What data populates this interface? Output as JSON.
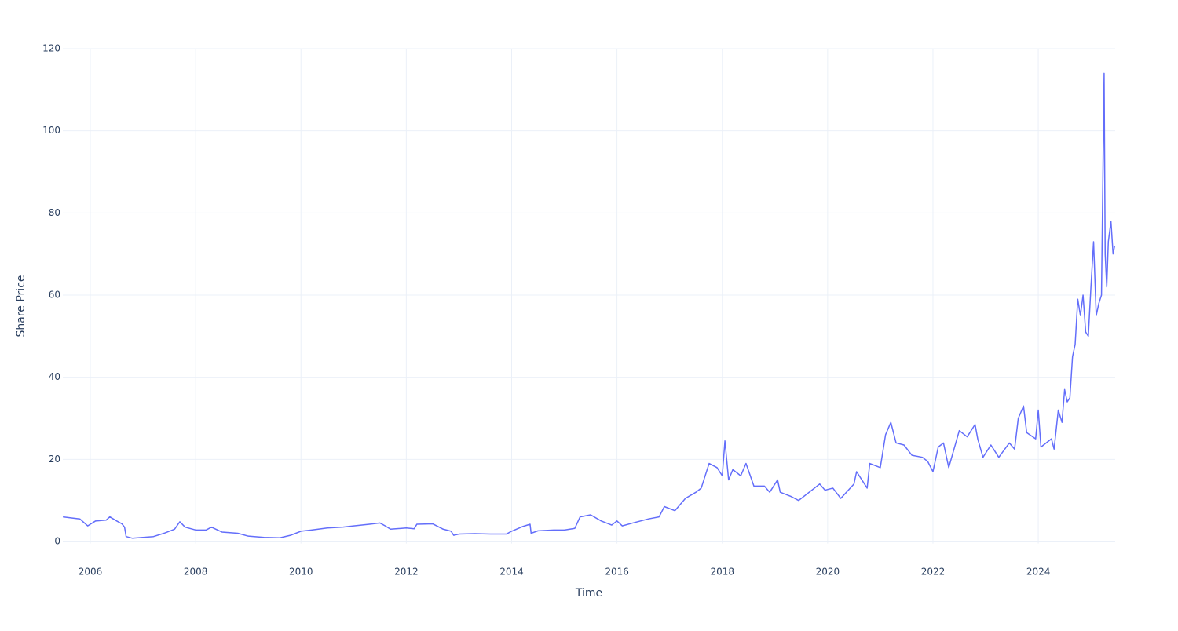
{
  "chart_data": {
    "type": "line",
    "xlabel": "Time",
    "ylabel": "Share Price",
    "x": [
      2005.48,
      2005.6,
      2005.8,
      2005.95,
      2006.0,
      2006.1,
      2006.3,
      2006.37,
      2006.5,
      2006.6,
      2006.65,
      2006.68,
      2006.8,
      2007.0,
      2007.2,
      2007.4,
      2007.6,
      2007.7,
      2007.8,
      2008.0,
      2008.2,
      2008.3,
      2008.5,
      2008.8,
      2009.0,
      2009.3,
      2009.6,
      2009.8,
      2010.0,
      2010.2,
      2010.5,
      2010.8,
      2011.0,
      2011.3,
      2011.5,
      2011.6,
      2011.7,
      2012.0,
      2012.15,
      2012.2,
      2012.5,
      2012.7,
      2012.85,
      2012.9,
      2013.0,
      2013.3,
      2013.6,
      2013.9,
      2014.0,
      2014.2,
      2014.35,
      2014.37,
      2014.5,
      2014.8,
      2015.0,
      2015.2,
      2015.3,
      2015.5,
      2015.7,
      2015.9,
      2016.0,
      2016.1,
      2016.3,
      2016.6,
      2016.8,
      2016.9,
      2017.1,
      2017.3,
      2017.5,
      2017.6,
      2017.75,
      2017.9,
      2018.0,
      2018.05,
      2018.12,
      2018.2,
      2018.35,
      2018.45,
      2018.6,
      2018.8,
      2018.9,
      2019.05,
      2019.1,
      2019.3,
      2019.45,
      2019.7,
      2019.85,
      2019.95,
      2020.1,
      2020.25,
      2020.5,
      2020.55,
      2020.75,
      2020.8,
      2021.0,
      2021.1,
      2021.2,
      2021.3,
      2021.45,
      2021.6,
      2021.8,
      2021.9,
      2022.0,
      2022.1,
      2022.2,
      2022.3,
      2022.5,
      2022.65,
      2022.8,
      2022.85,
      2022.95,
      2023.1,
      2023.25,
      2023.45,
      2023.55,
      2023.62,
      2023.72,
      2023.78,
      2023.95,
      2024.0,
      2024.05,
      2024.15,
      2024.25,
      2024.3,
      2024.38,
      2024.45,
      2024.5,
      2024.55,
      2024.6,
      2024.65,
      2024.7,
      2024.75,
      2024.8,
      2024.85,
      2024.9,
      2024.95,
      2025.0,
      2025.05,
      2025.1,
      2025.15,
      2025.2,
      2025.25,
      2025.27,
      2025.3,
      2025.33,
      2025.38,
      2025.42,
      2025.45
    ],
    "series": [
      {
        "name": "Share Price",
        "color": "#636efa",
        "values": [
          6,
          5.8,
          5.5,
          3.8,
          4.2,
          5,
          5.2,
          6,
          5,
          4.3,
          3.5,
          1.2,
          0.8,
          1.0,
          1.2,
          2.0,
          3,
          4.8,
          3.5,
          2.8,
          2.8,
          3.5,
          2.3,
          2,
          1.3,
          1,
          0.9,
          1.5,
          2.5,
          2.8,
          3.3,
          3.5,
          3.8,
          4.2,
          4.5,
          3.8,
          3,
          3.3,
          3.1,
          4.2,
          4.3,
          3.0,
          2.5,
          1.5,
          1.8,
          1.9,
          1.8,
          1.8,
          2.5,
          3.6,
          4.2,
          2.0,
          2.6,
          2.8,
          2.8,
          3.2,
          6,
          6.5,
          5,
          4,
          5,
          3.8,
          4.5,
          5.5,
          6,
          8.5,
          7.5,
          10.5,
          12,
          13,
          19,
          18,
          16,
          24.5,
          15,
          17.5,
          16,
          19,
          13.5,
          13.5,
          12,
          15,
          12,
          11,
          10,
          12.5,
          14,
          12.5,
          13,
          10.5,
          14,
          17,
          13,
          19,
          18,
          26,
          29,
          24,
          23.5,
          21,
          20.5,
          19.5,
          17,
          23,
          24,
          18,
          27,
          25.5,
          28.5,
          25,
          20.5,
          23.5,
          20.5,
          24,
          22.5,
          30,
          33,
          26.5,
          25,
          32,
          23,
          24,
          25,
          22.5,
          32,
          29,
          37,
          34,
          35,
          45,
          48,
          59,
          55,
          60,
          51,
          50,
          62,
          73,
          55,
          58,
          60,
          114,
          70,
          62,
          73,
          78,
          70,
          72
        ]
      }
    ],
    "xlim": [
      2005.478,
      2025.46
    ],
    "ylim": [
      -0.5,
      120
    ],
    "xticks": [
      2006,
      2008,
      2010,
      2012,
      2014,
      2016,
      2018,
      2020,
      2022,
      2024
    ],
    "yticks": [
      0,
      20,
      40,
      60,
      80,
      100,
      120
    ],
    "grid": true
  }
}
